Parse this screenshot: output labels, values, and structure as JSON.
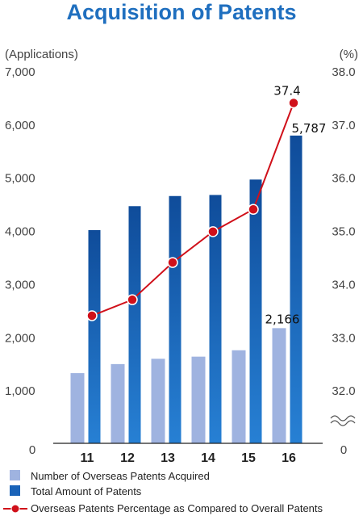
{
  "chart_data": {
    "type": "bar",
    "title": "Acquisition of Patents",
    "y_left_label": "(Applications)",
    "y_right_label": "(%)",
    "y_left_ticks": [
      "0",
      "1,000",
      "2,000",
      "3,000",
      "4,000",
      "5,000",
      "6,000",
      "7,000"
    ],
    "y_right_ticks": [
      "0",
      "32.0",
      "33.0",
      "34.0",
      "35.0",
      "36.0",
      "37.0",
      "38.0"
    ],
    "ylim_left": [
      0,
      7000
    ],
    "ylim_right": [
      31,
      38
    ],
    "right_axis_break": true,
    "categories": [
      "11",
      "12",
      "13",
      "14",
      "15",
      "16"
    ],
    "series": [
      {
        "name": "Number of Overseas Patents Acquired",
        "kind": "bar",
        "axis": "left",
        "color": "#9fb3e0",
        "values": [
          1320,
          1490,
          1590,
          1630,
          1750,
          2166
        ]
      },
      {
        "name": "Total Amount of Patents",
        "kind": "bar",
        "axis": "left",
        "color": "#1a63b8",
        "values": [
          4010,
          4460,
          4650,
          4670,
          4960,
          5787
        ]
      },
      {
        "name": "Overseas Patents Percentage as Compared to Overall Patents",
        "kind": "line",
        "axis": "right",
        "color": "#d0101a",
        "values": [
          33.4,
          33.7,
          34.4,
          34.98,
          35.4,
          37.4
        ]
      }
    ],
    "data_labels": [
      {
        "series": 0,
        "index": 5,
        "text": "2,166"
      },
      {
        "series": 1,
        "index": 5,
        "text": "5,787"
      },
      {
        "series": 2,
        "index": 5,
        "text": "37.4"
      }
    ],
    "legend_position": "bottom-left",
    "grid": false
  }
}
